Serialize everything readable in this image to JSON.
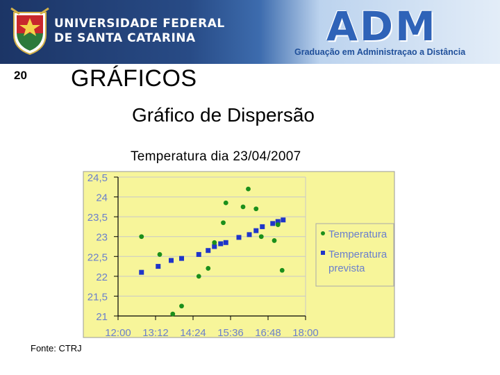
{
  "banner": {
    "university": [
      "UNIVERSIDADE FEDERAL",
      "DE SANTA CATARINA"
    ],
    "logo_text": "ADM",
    "logo_subtitle": "Graduação em Administraçao a Distância"
  },
  "slide": {
    "number": "20",
    "title": "GRÁFICOS",
    "subtitle": "Gráfico de Dispersão",
    "source": "Fonte: CTRJ"
  },
  "colors": {
    "plot_background": "#f7f59a",
    "grid": "#c8c8c8",
    "axis_text": "#6a7fcd",
    "series_temperature": "#1b8f1b",
    "series_forecast": "#1f35c9"
  },
  "chart_data": {
    "type": "scatter",
    "title": "Temperatura dia 23/04/2007",
    "xlabel": "",
    "ylabel": "",
    "x_ticks": [
      "12:00",
      "13:12",
      "14:24",
      "15:36",
      "16:48",
      "18:00"
    ],
    "y_ticks": [
      "21",
      "21,5",
      "22",
      "22,5",
      "23",
      "23,5",
      "24",
      "24,5"
    ],
    "xlim": [
      "12:00",
      "18:00"
    ],
    "ylim": [
      21,
      24.5
    ],
    "grid": true,
    "legend_position": "right",
    "series": [
      {
        "name": "Temperatura",
        "marker": "circle",
        "points": [
          {
            "x": "12:45",
            "y": 23.0
          },
          {
            "x": "13:20",
            "y": 22.55
          },
          {
            "x": "13:45",
            "y": 21.05
          },
          {
            "x": "14:02",
            "y": 21.25
          },
          {
            "x": "14:35",
            "y": 22.0
          },
          {
            "x": "14:53",
            "y": 22.2
          },
          {
            "x": "15:05",
            "y": 22.85
          },
          {
            "x": "15:22",
            "y": 23.35
          },
          {
            "x": "15:27",
            "y": 23.85
          },
          {
            "x": "16:00",
            "y": 23.75
          },
          {
            "x": "16:10",
            "y": 24.2
          },
          {
            "x": "16:25",
            "y": 23.7
          },
          {
            "x": "16:35",
            "y": 23.0
          },
          {
            "x": "17:00",
            "y": 22.9
          },
          {
            "x": "17:07",
            "y": 23.3
          },
          {
            "x": "17:15",
            "y": 22.15
          }
        ]
      },
      {
        "name": "Temperatura prevista",
        "marker": "square",
        "points": [
          {
            "x": "12:45",
            "y": 22.1
          },
          {
            "x": "13:17",
            "y": 22.25
          },
          {
            "x": "13:42",
            "y": 22.4
          },
          {
            "x": "14:02",
            "y": 22.45
          },
          {
            "x": "14:35",
            "y": 22.55
          },
          {
            "x": "14:53",
            "y": 22.65
          },
          {
            "x": "15:05",
            "y": 22.75
          },
          {
            "x": "15:17",
            "y": 22.82
          },
          {
            "x": "15:27",
            "y": 22.85
          },
          {
            "x": "15:52",
            "y": 22.98
          },
          {
            "x": "16:12",
            "y": 23.05
          },
          {
            "x": "16:25",
            "y": 23.15
          },
          {
            "x": "16:37",
            "y": 23.25
          },
          {
            "x": "16:57",
            "y": 23.33
          },
          {
            "x": "17:07",
            "y": 23.38
          },
          {
            "x": "17:17",
            "y": 23.42
          }
        ]
      }
    ]
  }
}
